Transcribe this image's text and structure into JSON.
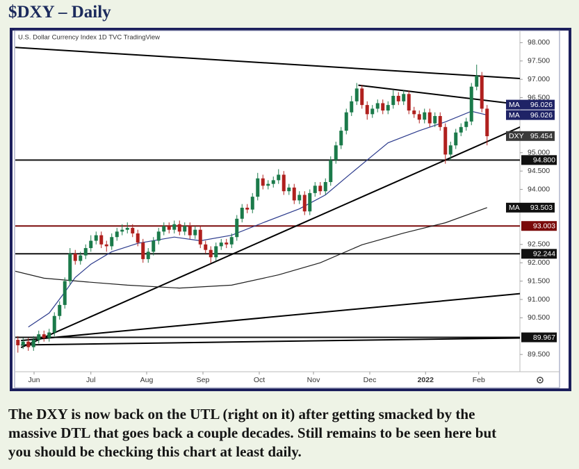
{
  "chart_data": {
    "type": "candlestick",
    "title": "$DXY – Daily",
    "subtitle": "U.S. Dollar Currency Index  1D  TVC  TradingView",
    "up_color": "#1b7a4a",
    "down_color": "#b0201e",
    "open": [
      89.9,
      89.75,
      89.85,
      89.7,
      89.9,
      90.05,
      89.95,
      90.1,
      90.55,
      90.85,
      91.5,
      92.25,
      92.05,
      92.2,
      92.4,
      92.6,
      92.75,
      92.5,
      92.45,
      92.7,
      92.85,
      92.9,
      92.95,
      92.8,
      92.55,
      92.1,
      92.3,
      92.6,
      92.85,
      93.0,
      92.9,
      93.05,
      92.85,
      93.0,
      92.75,
      92.9,
      92.5,
      92.35,
      92.15,
      92.45,
      92.55,
      92.5,
      92.7,
      93.2,
      93.5,
      93.45,
      93.8,
      94.3,
      94.1,
      94.15,
      94.25,
      94.4,
      93.95,
      94.05,
      93.7,
      93.85,
      93.4,
      93.9,
      94.1,
      93.95,
      94.2,
      94.8,
      95.2,
      95.6,
      96.1,
      96.4,
      96.75,
      96.3,
      96.05,
      96.2,
      96.35,
      96.15,
      96.3,
      96.55,
      96.4,
      96.6,
      96.15,
      96.05,
      95.9,
      96.1,
      95.8,
      96.0,
      95.7,
      94.95,
      95.2,
      95.55,
      95.7,
      95.85,
      96.8,
      97.1,
      96.2
    ],
    "high": [
      90.0,
      89.95,
      89.95,
      90.0,
      90.15,
      90.15,
      90.2,
      90.65,
      90.95,
      91.6,
      92.4,
      92.35,
      92.3,
      92.5,
      92.75,
      92.85,
      92.85,
      92.6,
      92.8,
      92.95,
      93.05,
      93.1,
      93.05,
      92.9,
      92.65,
      92.4,
      92.7,
      92.95,
      93.1,
      93.1,
      93.15,
      93.15,
      93.1,
      93.1,
      93.0,
      93.0,
      92.6,
      92.45,
      92.55,
      92.65,
      92.65,
      92.8,
      93.3,
      93.6,
      93.6,
      93.9,
      94.45,
      94.4,
      94.25,
      94.35,
      94.55,
      94.5,
      94.15,
      94.15,
      93.95,
      93.95,
      94.0,
      94.2,
      94.2,
      94.3,
      94.9,
      95.3,
      95.7,
      96.2,
      96.55,
      96.9,
      96.85,
      96.4,
      96.3,
      96.45,
      96.45,
      96.4,
      96.7,
      96.65,
      96.7,
      96.7,
      96.25,
      96.15,
      96.2,
      96.2,
      96.1,
      96.1,
      95.8,
      95.3,
      95.65,
      95.8,
      95.95,
      96.9,
      97.4,
      97.2,
      96.3
    ],
    "low": [
      89.55,
      89.65,
      89.6,
      89.6,
      89.8,
      89.85,
      89.85,
      90.0,
      90.45,
      90.75,
      91.4,
      91.95,
      91.95,
      92.1,
      92.3,
      92.5,
      92.4,
      92.3,
      92.35,
      92.6,
      92.75,
      92.8,
      92.7,
      92.45,
      92.0,
      92.0,
      92.2,
      92.5,
      92.75,
      92.8,
      92.8,
      92.75,
      92.75,
      92.65,
      92.65,
      92.4,
      92.25,
      92.0,
      92.05,
      92.35,
      92.4,
      92.4,
      92.6,
      93.1,
      93.35,
      93.35,
      93.7,
      94.0,
      94.0,
      94.05,
      94.15,
      93.85,
      93.85,
      93.6,
      93.6,
      93.3,
      93.3,
      93.8,
      93.85,
      93.85,
      94.1,
      94.7,
      95.1,
      95.5,
      96.0,
      96.3,
      96.2,
      95.9,
      95.95,
      96.1,
      96.05,
      96.05,
      96.2,
      96.3,
      96.3,
      96.05,
      95.95,
      95.8,
      95.8,
      95.7,
      95.7,
      95.6,
      94.7,
      94.8,
      95.1,
      95.45,
      95.6,
      95.75,
      96.7,
      96.1,
      95.2
    ],
    "close": [
      89.75,
      89.85,
      89.7,
      89.9,
      90.05,
      89.95,
      90.1,
      90.55,
      90.85,
      91.5,
      92.25,
      92.05,
      92.2,
      92.4,
      92.6,
      92.75,
      92.5,
      92.45,
      92.7,
      92.85,
      92.9,
      92.95,
      92.8,
      92.55,
      92.1,
      92.3,
      92.6,
      92.85,
      93.0,
      92.9,
      93.05,
      92.85,
      93.0,
      92.75,
      92.9,
      92.5,
      92.35,
      92.15,
      92.45,
      92.55,
      92.5,
      92.7,
      93.2,
      93.5,
      93.45,
      93.8,
      94.3,
      94.1,
      94.15,
      94.25,
      94.4,
      93.95,
      94.05,
      93.7,
      93.85,
      93.4,
      93.9,
      94.1,
      93.95,
      94.2,
      94.8,
      95.2,
      95.6,
      96.1,
      96.4,
      96.75,
      96.3,
      96.05,
      96.2,
      96.35,
      96.15,
      96.3,
      96.55,
      96.4,
      96.6,
      96.15,
      96.05,
      95.9,
      96.1,
      95.8,
      96.0,
      95.7,
      94.95,
      95.2,
      95.55,
      95.7,
      95.85,
      96.8,
      97.1,
      96.2,
      95.45
    ],
    "series": [
      {
        "color": "#2b3a8c",
        "x": [
          2,
          6,
          9,
          11,
          14,
          18,
          23,
          30,
          35,
          41,
          47,
          54,
          59,
          63,
          67,
          71,
          77,
          82,
          87,
          90
        ],
        "values": [
          90.25,
          90.63,
          91.2,
          91.6,
          91.96,
          92.3,
          92.53,
          92.7,
          92.6,
          92.75,
          93.09,
          93.47,
          93.85,
          94.33,
          94.8,
          95.27,
          95.6,
          95.84,
          96.13,
          96.026
        ]
      },
      {
        "color": "#1e1e1e",
        "x": [
          -0.5,
          5,
          13,
          21,
          31,
          41,
          50,
          58,
          66,
          74,
          82,
          90
        ],
        "values": [
          91.77,
          91.58,
          91.48,
          91.39,
          91.31,
          91.39,
          91.67,
          92.0,
          92.49,
          92.81,
          93.09,
          93.503
        ]
      }
    ],
    "trendlines": [
      {
        "x": [
          -0.5,
          96.5
        ],
        "values": [
          97.87,
          97.02
        ]
      },
      {
        "x": [
          65.3,
          96.5
        ],
        "values": [
          96.84,
          96.31
        ]
      },
      {
        "x": [
          0.6,
          96.5
        ],
        "values": [
          89.69,
          95.71
        ]
      },
      {
        "x": [
          0.6,
          96.5
        ],
        "values": [
          89.88,
          91.16
        ]
      },
      {
        "x": [
          0.6,
          96.5
        ],
        "values": [
          89.76,
          89.95
        ]
      }
    ],
    "levels": {
      "values": [
        94.8,
        93.003,
        92.244,
        89.967
      ],
      "value_labels": [
        "94.800",
        "93.003",
        "92.244",
        "89.967"
      ],
      "colors": [
        "#111111",
        "#7a0a0a",
        "#111111",
        "#111111"
      ]
    },
    "price_labels": {
      "names": [
        "MA",
        "MA",
        "DXY",
        "MA"
      ],
      "values": [
        96.026,
        96.026,
        95.454,
        93.503
      ],
      "colors": [
        "#1f2366",
        "#1f2366",
        "#3a3a3a",
        "#111111"
      ]
    },
    "xlim": [
      -0.5,
      96.3
    ],
    "ylim": [
      89.03,
      98.31
    ],
    "xticks": [
      {
        "value": 3.1,
        "label": "Jun"
      },
      {
        "value": 14.0,
        "label": "Jul"
      },
      {
        "value": 24.7,
        "label": "Aug"
      },
      {
        "value": 35.5,
        "label": "Sep"
      },
      {
        "value": 46.3,
        "label": "Oct"
      },
      {
        "value": 56.7,
        "label": "Nov"
      },
      {
        "value": 67.5,
        "label": "Dec"
      },
      {
        "value": 78.2,
        "label": "2022",
        "bold": true
      },
      {
        "value": 88.4,
        "label": "Feb"
      }
    ],
    "yticks": [
      {
        "value": 98,
        "label": "98.000"
      },
      {
        "value": 97.5,
        "label": "97.500"
      },
      {
        "value": 97,
        "label": "97.000"
      },
      {
        "value": 96.5,
        "label": "96.500"
      },
      {
        "value": 95,
        "label": "95.000"
      },
      {
        "value": 94.5,
        "label": "94.500"
      },
      {
        "value": 94,
        "label": "94.000"
      },
      {
        "value": 92.5,
        "label": "92.500"
      },
      {
        "value": 92,
        "label": "92.000"
      },
      {
        "value": 91.5,
        "label": "91.500"
      },
      {
        "value": 91,
        "label": "91.000"
      },
      {
        "value": 90.5,
        "label": "90.500"
      },
      {
        "value": 89.5,
        "label": "89.500"
      }
    ],
    "grid": false
  },
  "caption": [
    "The DXY is now back on the UTL (right on it) after getting smacked by the",
    "massive DTL that goes back a couple decades. Still remains to be seen here but",
    "you should be checking this chart at least daily."
  ]
}
